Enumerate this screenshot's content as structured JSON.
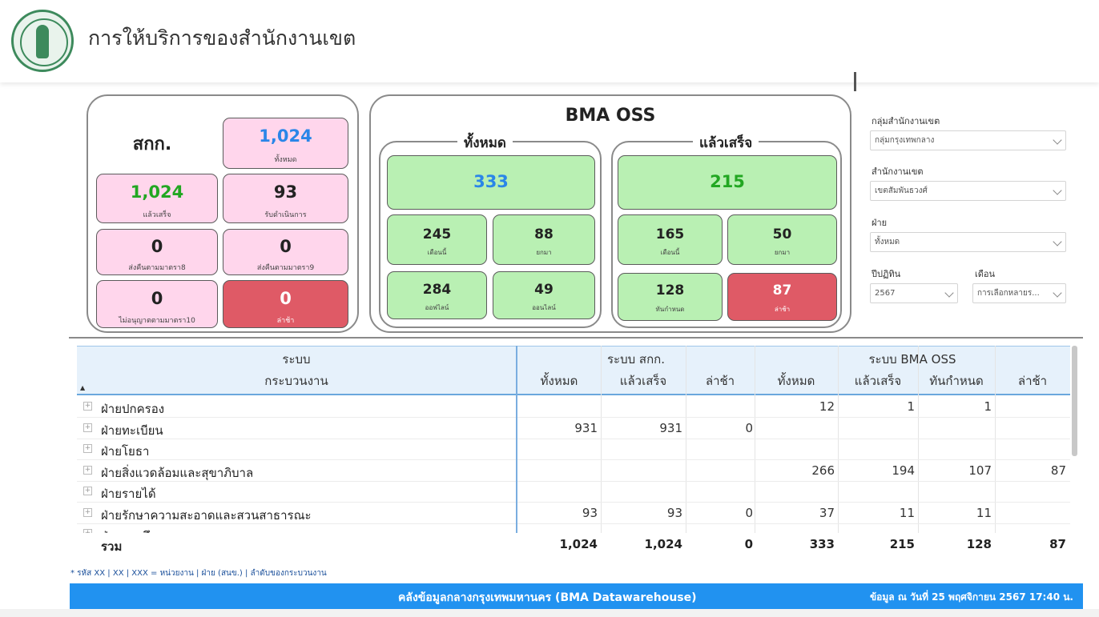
{
  "header": {
    "title": "การให้บริการของสำนักงานเขต",
    "fragment": ""
  },
  "skk": {
    "title": "สกก.",
    "total": {
      "value": "1,024",
      "label": "ทั้งหมด"
    },
    "done": {
      "value": "1,024",
      "label": "แล้วเสร็จ"
    },
    "in_progress": {
      "value": "93",
      "label": "รับดำเนินการ"
    },
    "return8": {
      "value": "0",
      "label": "ส่งคืนตามมาตรา8"
    },
    "return9": {
      "value": "0",
      "label": "ส่งคืนตามมาตรา9"
    },
    "denied10": {
      "value": "0",
      "label": "ไม่อนุญาตตามมาตรา10"
    },
    "late": {
      "value": "0",
      "label": "ล่าช้า"
    }
  },
  "oss": {
    "title": "BMA OSS",
    "all": {
      "title": "ทั้งหมด",
      "total": "333",
      "month": {
        "value": "245",
        "label": "เดือนนี้"
      },
      "carry": {
        "value": "88",
        "label": "ยกมา"
      },
      "offline": {
        "value": "284",
        "label": "ออฟไลน์"
      },
      "online": {
        "value": "49",
        "label": "ออนไลน์"
      }
    },
    "done": {
      "title": "แล้วเสร็จ",
      "total": "215",
      "month": {
        "value": "165",
        "label": "เดือนนี้"
      },
      "carry": {
        "value": "50",
        "label": "ยกมา"
      },
      "ontime": {
        "value": "128",
        "label": "ทันกำหนด"
      },
      "late": {
        "value": "87",
        "label": "ล่าช้า"
      }
    }
  },
  "filters": {
    "group": {
      "label": "กลุ่มสำนักงานเขต",
      "value": "กลุ่มกรุงเทพกลาง"
    },
    "office": {
      "label": "สำนักงานเขต",
      "value": "เขตสัมพันธวงศ์"
    },
    "division": {
      "label": "ฝ่าย",
      "value": "ทั้งหมด"
    },
    "year": {
      "label": "ปีปฏิทิน",
      "value": "2567"
    },
    "month": {
      "label": "เดือน",
      "value": "การเลือกหลายร..."
    }
  },
  "table": {
    "head1": {
      "system": "ระบบ",
      "skk": "ระบบ สกก.",
      "oss": "ระบบ BMA OSS"
    },
    "head2": {
      "process": "กระบวนงาน",
      "skk_total": "ทั้งหมด",
      "skk_done": "แล้วเสร็จ",
      "skk_late": "ล่าช้า",
      "oss_total": "ทั้งหมด",
      "oss_done": "แล้วเสร็จ",
      "oss_ontime": "ทันกำหนด",
      "oss_late": "ล่าช้า"
    },
    "sort_icon": "▲",
    "expand_icon": "+",
    "rows": [
      {
        "name": "ฝ่ายปกครอง",
        "c1": "",
        "c2": "",
        "c3": "",
        "c4": "12",
        "c5": "1",
        "c6": "1",
        "c7": ""
      },
      {
        "name": "ฝ่ายทะเบียน",
        "c1": "931",
        "c2": "931",
        "c3": "0",
        "c4": "",
        "c5": "",
        "c6": "",
        "c7": ""
      },
      {
        "name": "ฝ่ายโยธา",
        "c1": "",
        "c2": "",
        "c3": "",
        "c4": "",
        "c5": "",
        "c6": "",
        "c7": ""
      },
      {
        "name": "ฝ่ายสิ่งแวดล้อมและสุขาภิบาล",
        "c1": "",
        "c2": "",
        "c3": "",
        "c4": "266",
        "c5": "194",
        "c6": "107",
        "c7": "87"
      },
      {
        "name": "ฝ่ายรายได้",
        "c1": "",
        "c2": "",
        "c3": "",
        "c4": "",
        "c5": "",
        "c6": "",
        "c7": ""
      },
      {
        "name": "ฝ่ายรักษาความสะอาดและสวนสาธารณะ",
        "c1": "93",
        "c2": "93",
        "c3": "0",
        "c4": "37",
        "c5": "11",
        "c6": "11",
        "c7": ""
      },
      {
        "name": "ฝ่ายการศึกษา",
        "c1": "",
        "c2": "",
        "c3": "",
        "c4": "",
        "c5": "",
        "c6": "",
        "c7": ""
      }
    ],
    "total": {
      "name": "รวม",
      "c1": "1,024",
      "c2": "1,024",
      "c3": "0",
      "c4": "333",
      "c5": "215",
      "c6": "128",
      "c7": "87"
    }
  },
  "footnote": "* รหัส XX | XX | XXX = หน่วยงาน | ฝ่าย (สนข.) | ลำดับของกระบวนงาน",
  "footer": {
    "title": "คลังข้อมูลกลางกรุงเทพมหานคร (BMA Datawarehouse)",
    "date": "ข้อมูล ณ วันที่ 25 พฤศจิกายน 2567 17:40 น."
  }
}
